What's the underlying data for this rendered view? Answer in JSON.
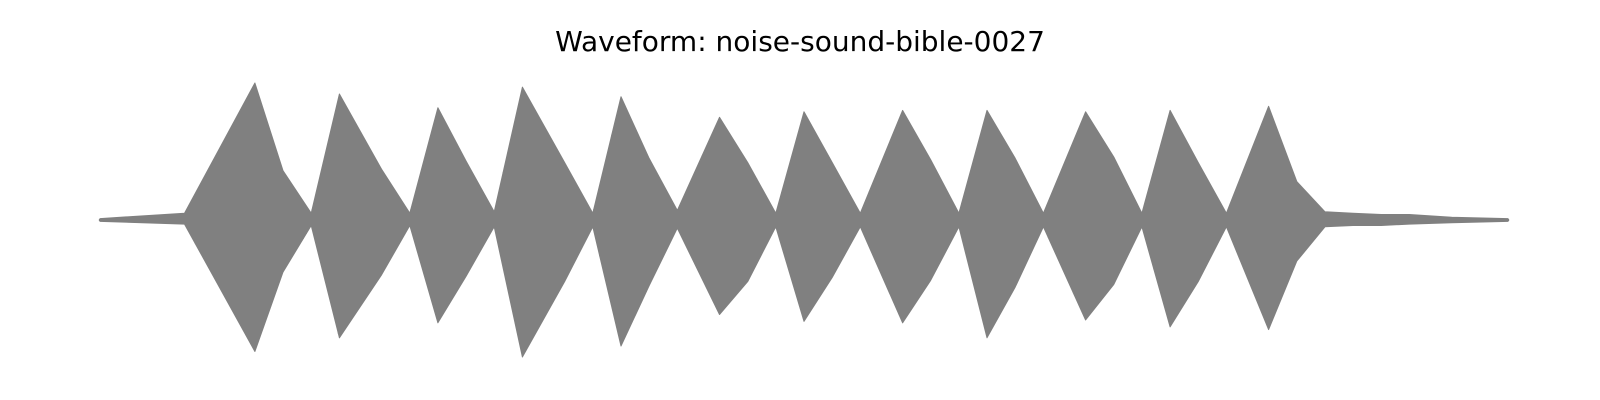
{
  "chart_data": {
    "type": "area",
    "title": "Waveform: noise-sound-bible-0027",
    "color": "#808080",
    "axes_visible": false,
    "grid": false,
    "ylim": [
      -1,
      1
    ],
    "x": [
      0.0,
      0.06,
      0.11,
      0.13,
      0.15,
      0.17,
      0.2,
      0.22,
      0.24,
      0.26,
      0.28,
      0.3,
      0.33,
      0.35,
      0.37,
      0.39,
      0.41,
      0.44,
      0.46,
      0.48,
      0.5,
      0.52,
      0.54,
      0.57,
      0.59,
      0.61,
      0.63,
      0.65,
      0.67,
      0.7,
      0.72,
      0.74,
      0.76,
      0.78,
      0.8,
      0.83,
      0.85,
      0.87,
      0.89,
      0.91,
      0.93,
      0.96,
      1.0
    ],
    "envelope_max": [
      0.01,
      0.05,
      1.0,
      0.36,
      0.05,
      0.92,
      0.37,
      0.05,
      0.82,
      0.43,
      0.06,
      0.97,
      0.42,
      0.05,
      0.9,
      0.45,
      0.07,
      0.75,
      0.42,
      0.05,
      0.79,
      0.42,
      0.05,
      0.8,
      0.44,
      0.05,
      0.8,
      0.45,
      0.05,
      0.79,
      0.46,
      0.05,
      0.8,
      0.42,
      0.05,
      0.83,
      0.28,
      0.06,
      0.05,
      0.04,
      0.04,
      0.02,
      0.01
    ],
    "envelope_min": [
      -0.01,
      -0.03,
      -0.96,
      -0.38,
      -0.04,
      -0.86,
      -0.4,
      -0.04,
      -0.75,
      -0.41,
      -0.05,
      -1.0,
      -0.45,
      -0.05,
      -0.92,
      -0.48,
      -0.06,
      -0.69,
      -0.45,
      -0.05,
      -0.74,
      -0.42,
      -0.05,
      -0.75,
      -0.44,
      -0.05,
      -0.86,
      -0.49,
      -0.05,
      -0.73,
      -0.47,
      -0.05,
      -0.78,
      -0.45,
      -0.05,
      -0.8,
      -0.3,
      -0.05,
      -0.04,
      -0.04,
      -0.03,
      -0.02,
      -0.01
    ]
  }
}
